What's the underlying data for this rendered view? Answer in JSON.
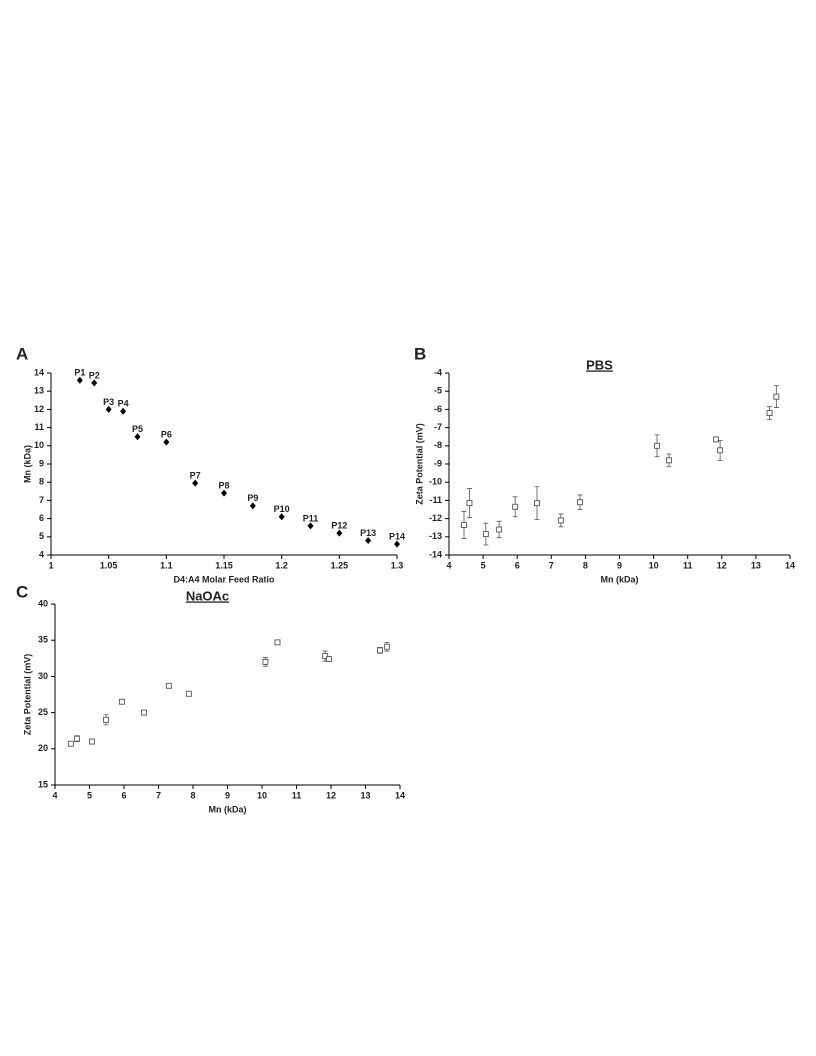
{
  "chart_data": [
    {
      "type": "scatter",
      "panel": "A",
      "xlabel": "D4:A4 Molar Feed Ratio",
      "ylabel": "Mn (kDa)",
      "x": [
        1.025,
        1.0375,
        1.05,
        1.0625,
        1.075,
        1.1,
        1.125,
        1.15,
        1.175,
        1.2,
        1.225,
        1.25,
        1.275,
        1.3
      ],
      "values": [
        13.6,
        13.45,
        12.0,
        11.9,
        10.5,
        10.2,
        7.95,
        7.4,
        6.7,
        6.1,
        5.6,
        5.2,
        4.8,
        4.6
      ],
      "point_labels": [
        "P1",
        "P2",
        "P3",
        "P4",
        "P5",
        "P6",
        "P7",
        "P8",
        "P9",
        "P10",
        "P11",
        "P12",
        "P13",
        "P14"
      ],
      "marker": "diamond",
      "color": "#000000",
      "xlim": [
        1,
        1.3
      ],
      "xticks": [
        1,
        1.05,
        1.1,
        1.15,
        1.2,
        1.25,
        1.3
      ],
      "ylim": [
        4,
        14
      ],
      "yticks": [
        4,
        5,
        6,
        7,
        8,
        9,
        10,
        11,
        12,
        13,
        14
      ]
    },
    {
      "type": "scatter",
      "panel": "B",
      "title": "PBS",
      "xlabel": "Mn (kDa)",
      "ylabel": "Zeta Potential (mV)",
      "x": [
        4.44,
        4.6,
        5.08,
        5.47,
        5.94,
        6.58,
        7.28,
        7.84,
        10.1,
        10.45,
        11.83,
        11.95,
        13.4,
        13.6
      ],
      "values": [
        -12.35,
        -11.15,
        -12.85,
        -12.6,
        -11.35,
        -11.15,
        -12.1,
        -11.1,
        -8.0,
        -8.8,
        -7.65,
        -8.25,
        -6.2,
        -5.3
      ],
      "errors": [
        0.75,
        0.8,
        0.6,
        0.45,
        0.55,
        0.9,
        0.35,
        0.4,
        0.6,
        0.35,
        0.1,
        0.55,
        0.35,
        0.6
      ],
      "marker": "square",
      "color": "#555555",
      "xlim": [
        4,
        14
      ],
      "xticks": [
        4,
        5,
        6,
        7,
        8,
        9,
        10,
        11,
        12,
        13,
        14
      ],
      "ylim": [
        -14,
        -4
      ],
      "yticks": [
        -14,
        -13,
        -12,
        -11,
        -10,
        -9,
        -8,
        -7,
        -6,
        -5,
        -4
      ]
    },
    {
      "type": "scatter",
      "panel": "C",
      "title": "NaOAc",
      "xlabel": "Mn (kDa)",
      "ylabel": "Zeta Potential (mV)",
      "x": [
        4.46,
        4.64,
        5.07,
        5.48,
        5.94,
        6.58,
        7.3,
        7.88,
        10.1,
        10.45,
        11.83,
        11.94,
        13.42,
        13.62
      ],
      "values": [
        20.7,
        21.4,
        21.0,
        24.0,
        26.5,
        25.0,
        28.7,
        27.6,
        32.0,
        34.7,
        32.8,
        32.4,
        33.6,
        34.1
      ],
      "errors": [
        0.3,
        0.4,
        0.2,
        0.7,
        0.3,
        0.3,
        0.2,
        0.2,
        0.6,
        0.3,
        0.7,
        0.3,
        0.4,
        0.6
      ],
      "marker": "square",
      "color": "#555555",
      "xlim": [
        4,
        14
      ],
      "xticks": [
        4,
        5,
        6,
        7,
        8,
        9,
        10,
        11,
        12,
        13,
        14
      ],
      "ylim": [
        15,
        40
      ],
      "yticks": [
        15,
        20,
        25,
        30,
        35,
        40
      ]
    }
  ]
}
